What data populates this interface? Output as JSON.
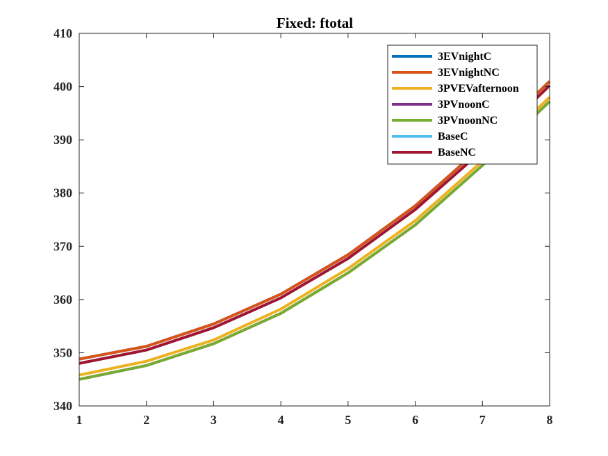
{
  "chart_data": {
    "type": "line",
    "title": "Fixed: ftotal",
    "xlabel": "",
    "ylabel": "",
    "xlim": [
      1,
      8
    ],
    "ylim": [
      340,
      410
    ],
    "x": [
      1,
      2,
      3,
      4,
      5,
      6,
      7,
      8
    ],
    "xticks": [
      "1",
      "2",
      "3",
      "4",
      "5",
      "6",
      "7",
      "8"
    ],
    "yticks": [
      "340",
      "350",
      "360",
      "370",
      "380",
      "390",
      "400",
      "410"
    ],
    "grid": false,
    "legend_position": "top-right",
    "series": [
      {
        "name": "3EVnightC",
        "color": "#0072BD",
        "values": [
          348.8,
          351.2,
          355.4,
          361.0,
          368.4,
          377.6,
          388.8,
          401.0
        ]
      },
      {
        "name": "3EVnightNC",
        "color": "#D95319",
        "values": [
          348.8,
          351.2,
          355.4,
          361.0,
          368.4,
          377.6,
          388.8,
          401.0
        ]
      },
      {
        "name": "3PVEVafternoon",
        "color": "#EDB120",
        "values": [
          345.8,
          348.4,
          352.4,
          358.2,
          365.8,
          374.8,
          386.0,
          398.0
        ]
      },
      {
        "name": "3PVnoonC",
        "color": "#7E2F8E",
        "values": [
          345.0,
          347.6,
          351.7,
          357.4,
          365.0,
          374.0,
          385.2,
          397.2
        ]
      },
      {
        "name": "3PVnoonNC",
        "color": "#77AC30",
        "values": [
          345.0,
          347.6,
          351.7,
          357.4,
          365.0,
          374.0,
          385.2,
          397.2
        ]
      },
      {
        "name": "BaseC",
        "color": "#4DBEEE",
        "values": [
          348.0,
          350.5,
          354.7,
          360.3,
          367.7,
          376.9,
          388.0,
          400.2
        ]
      },
      {
        "name": "BaseNC",
        "color": "#A2142F",
        "values": [
          348.0,
          350.5,
          354.7,
          360.3,
          367.7,
          376.9,
          388.0,
          400.2
        ]
      }
    ]
  }
}
